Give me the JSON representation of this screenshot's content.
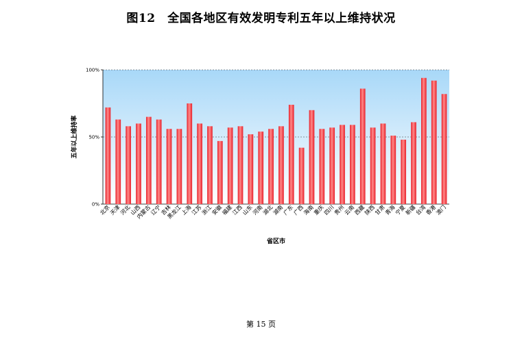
{
  "page": {
    "title": "图12　全国各地区有效发明专利五年以上维持状况",
    "page_number": "第 15 页"
  },
  "chart_data": {
    "type": "bar",
    "title": "",
    "xlabel": "省区市",
    "ylabel": "五年以上维持率",
    "ylim": [
      0,
      100
    ],
    "yticks": [
      "0%",
      "50%",
      "100%"
    ],
    "grid": "dashed at 50% and 100%",
    "legend": "none",
    "colors": {
      "bar": "#e8202a",
      "bar_highlight": "#ff8a8a",
      "plot_top": "#a8d8f8",
      "plot_bottom": "#ffffff"
    },
    "categories": [
      "北京",
      "天津",
      "河北",
      "山西",
      "内蒙古",
      "辽宁",
      "吉林",
      "黑龙江",
      "上海",
      "江苏",
      "浙江",
      "安徽",
      "福建",
      "江西",
      "山东",
      "河南",
      "湖北",
      "湖南",
      "广东",
      "广西",
      "海南",
      "重庆",
      "四川",
      "贵州",
      "云南",
      "西藏",
      "陕西",
      "甘肃",
      "青海",
      "宁夏",
      "新疆",
      "台湾",
      "香港",
      "澳门"
    ],
    "values": [
      72,
      63,
      58,
      60,
      65,
      63,
      56,
      56,
      75,
      60,
      58,
      47,
      57,
      58,
      52,
      54,
      56,
      58,
      74,
      42,
      70,
      56,
      57,
      59,
      59,
      86,
      57,
      60,
      51,
      48,
      61,
      94,
      92,
      82
    ]
  }
}
